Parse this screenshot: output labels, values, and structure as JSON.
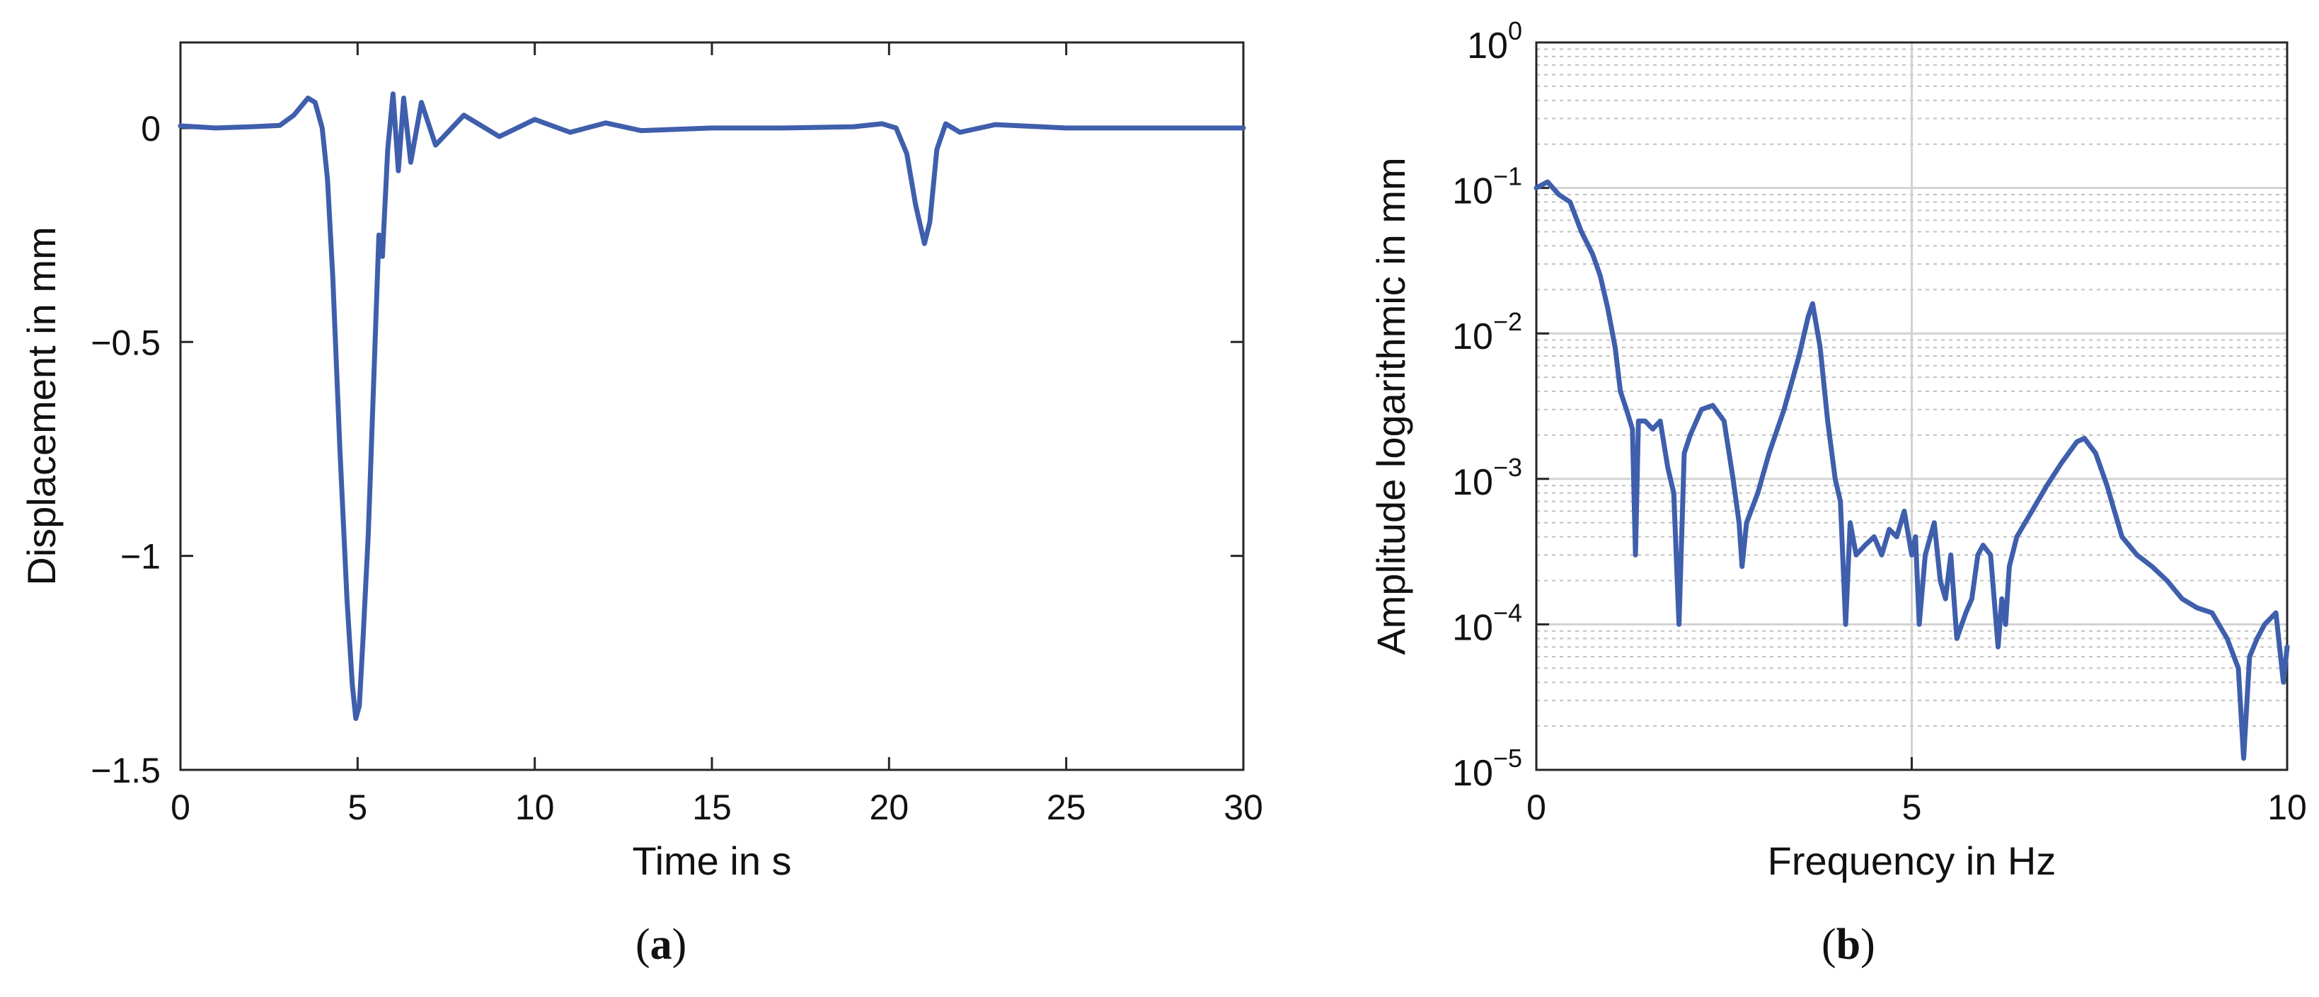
{
  "colors": {
    "line": "#3f5fac",
    "axis": "#262626",
    "major_grid": "#d2d2d2",
    "minor_grid": "#c0c0c0"
  },
  "captions": {
    "a": "a",
    "b": "b"
  },
  "chart_data": [
    {
      "id": "a",
      "type": "line",
      "title": "",
      "xlabel": "Time in s",
      "ylabel": "Displacement in mm",
      "xlim": [
        0,
        30
      ],
      "ylim": [
        -1.5,
        0.2
      ],
      "xticks": [
        0,
        5,
        10,
        15,
        20,
        25,
        30
      ],
      "xtick_labels": [
        "0",
        "5",
        "10",
        "15",
        "20",
        "25",
        "30"
      ],
      "yticks": [
        0,
        -0.5,
        -1,
        -1.5
      ],
      "ytick_labels": [
        "0",
        "−0.5",
        "−1",
        "−1.5"
      ],
      "grid": false,
      "series": [
        {
          "x": [
            0,
            1,
            2,
            2.8,
            3.2,
            3.6,
            3.8,
            4.0,
            4.15,
            4.3,
            4.5,
            4.7,
            4.85,
            4.95,
            5.05,
            5.15,
            5.3,
            5.45,
            5.6,
            5.7,
            5.85,
            6.0,
            6.15,
            6.3,
            6.5,
            6.8,
            7.2,
            8,
            9,
            10,
            11,
            12,
            13,
            15,
            17,
            19,
            19.8,
            20.2,
            20.5,
            20.75,
            21.0,
            21.15,
            21.35,
            21.6,
            22,
            23,
            25,
            27,
            30
          ],
          "values": [
            0.005,
            0.0,
            0.003,
            0.006,
            0.03,
            0.07,
            0.06,
            0.0,
            -0.12,
            -0.35,
            -0.75,
            -1.1,
            -1.3,
            -1.38,
            -1.35,
            -1.2,
            -0.95,
            -0.6,
            -0.25,
            -0.3,
            -0.05,
            0.08,
            -0.1,
            0.07,
            -0.08,
            0.06,
            -0.04,
            0.03,
            -0.02,
            0.02,
            -0.01,
            0.012,
            -0.006,
            0.0,
            0.0,
            0.003,
            0.01,
            0.0,
            -0.06,
            -0.18,
            -0.27,
            -0.22,
            -0.05,
            0.01,
            -0.01,
            0.008,
            0.0,
            0.0,
            0.0
          ]
        }
      ]
    },
    {
      "id": "b",
      "type": "line",
      "title": "",
      "xlabel": "Frequency in Hz",
      "ylabel": "Amplitude logarithmic in mm",
      "xlim": [
        0,
        10
      ],
      "ylim": [
        1e-05,
        1
      ],
      "yscale": "log",
      "xticks": [
        0,
        5,
        10
      ],
      "xtick_labels": [
        "0",
        "5",
        "10"
      ],
      "ytick_bases": [
        "10",
        "10",
        "10",
        "10",
        "10",
        "10"
      ],
      "ytick_exponents": [
        "0",
        "−1",
        "−2",
        "−3",
        "−4",
        "−5"
      ],
      "yticks": [
        1,
        0.1,
        0.01,
        0.001,
        0.0001,
        1e-05
      ],
      "grid": true,
      "minor_grid": true,
      "series": [
        {
          "x": [
            0,
            0.15,
            0.3,
            0.45,
            0.6,
            0.75,
            0.85,
            0.95,
            1.05,
            1.12,
            1.2,
            1.28,
            1.32,
            1.36,
            1.45,
            1.55,
            1.65,
            1.75,
            1.83,
            1.9,
            1.97,
            2.05,
            2.2,
            2.35,
            2.5,
            2.62,
            2.7,
            2.74,
            2.8,
            2.95,
            3.1,
            3.3,
            3.5,
            3.62,
            3.68,
            3.78,
            3.88,
            3.98,
            4.05,
            4.12,
            4.18,
            4.26,
            4.38,
            4.5,
            4.6,
            4.7,
            4.8,
            4.9,
            5.0,
            5.05,
            5.1,
            5.18,
            5.3,
            5.38,
            5.45,
            5.52,
            5.6,
            5.72,
            5.8,
            5.88,
            5.95,
            6.05,
            6.15,
            6.2,
            6.25,
            6.3,
            6.4,
            6.6,
            6.8,
            7.0,
            7.2,
            7.3,
            7.45,
            7.6,
            7.8,
            8.0,
            8.2,
            8.4,
            8.6,
            8.8,
            9.0,
            9.2,
            9.35,
            9.42,
            9.5,
            9.6,
            9.7,
            9.85,
            9.95,
            10.0
          ],
          "values": [
            0.1,
            0.11,
            0.09,
            0.08,
            0.05,
            0.035,
            0.025,
            0.015,
            0.008,
            0.004,
            0.003,
            0.0022,
            0.0003,
            0.0025,
            0.0025,
            0.0022,
            0.0025,
            0.0012,
            0.0008,
            0.0001,
            0.0015,
            0.002,
            0.003,
            0.0032,
            0.0025,
            0.001,
            0.0005,
            0.00025,
            0.0005,
            0.0008,
            0.0015,
            0.003,
            0.007,
            0.013,
            0.016,
            0.008,
            0.0025,
            0.001,
            0.0007,
            0.0001,
            0.0005,
            0.0003,
            0.00035,
            0.0004,
            0.0003,
            0.00045,
            0.0004,
            0.0006,
            0.0003,
            0.0004,
            0.0001,
            0.0003,
            0.0005,
            0.0002,
            0.00015,
            0.0003,
            8e-05,
            0.00012,
            0.00015,
            0.0003,
            0.00035,
            0.0003,
            7e-05,
            0.00015,
            0.0001,
            0.00025,
            0.0004,
            0.0006,
            0.0009,
            0.0013,
            0.0018,
            0.0019,
            0.0015,
            0.0009,
            0.0004,
            0.0003,
            0.00025,
            0.0002,
            0.00015,
            0.00013,
            0.00012,
            8e-05,
            5e-05,
            1.2e-05,
            6e-05,
            8e-05,
            0.0001,
            0.00012,
            4e-05,
            7e-05
          ]
        }
      ]
    }
  ]
}
